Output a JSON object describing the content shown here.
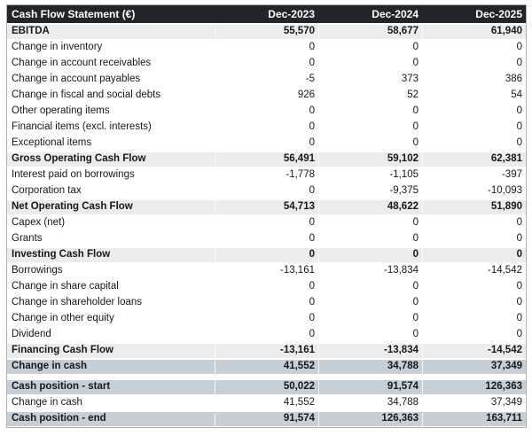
{
  "table": {
    "title": "Cash Flow Statement (€)",
    "columns": [
      "Dec-2023",
      "Dec-2024",
      "Dec-2025"
    ],
    "rows": [
      {
        "label": "EBITDA",
        "values": [
          "55,570",
          "58,677",
          "61,940"
        ],
        "style": "section"
      },
      {
        "label": "Change in inventory",
        "values": [
          "0",
          "0",
          "0"
        ],
        "style": "plain"
      },
      {
        "label": "Change in account receivables",
        "values": [
          "0",
          "0",
          "0"
        ],
        "style": "plain"
      },
      {
        "label": "Change in account payables",
        "values": [
          "-5",
          "373",
          "386"
        ],
        "style": "plain"
      },
      {
        "label": "Change in fiscal and social debts",
        "values": [
          "926",
          "52",
          "54"
        ],
        "style": "plain"
      },
      {
        "label": "Other operating items",
        "values": [
          "0",
          "0",
          "0"
        ],
        "style": "plain"
      },
      {
        "label": "Financial items (excl. interests)",
        "values": [
          "0",
          "0",
          "0"
        ],
        "style": "plain"
      },
      {
        "label": "Exceptional items",
        "values": [
          "0",
          "0",
          "0"
        ],
        "style": "plain"
      },
      {
        "label": "Gross Operating Cash Flow",
        "values": [
          "56,491",
          "59,102",
          "62,381"
        ],
        "style": "section"
      },
      {
        "label": "Interest paid on borrowings",
        "values": [
          "-1,778",
          "-1,105",
          "-397"
        ],
        "style": "plain"
      },
      {
        "label": "Corporation tax",
        "values": [
          "0",
          "-9,375",
          "-10,093"
        ],
        "style": "plain"
      },
      {
        "label": "Net Operating Cash Flow",
        "values": [
          "54,713",
          "48,622",
          "51,890"
        ],
        "style": "section"
      },
      {
        "label": "Capex (net)",
        "values": [
          "0",
          "0",
          "0"
        ],
        "style": "plain"
      },
      {
        "label": "Grants",
        "values": [
          "0",
          "0",
          "0"
        ],
        "style": "plain"
      },
      {
        "label": "Investing Cash Flow",
        "values": [
          "0",
          "0",
          "0"
        ],
        "style": "section"
      },
      {
        "label": "Borrowings",
        "values": [
          "-13,161",
          "-13,834",
          "-14,542"
        ],
        "style": "plain"
      },
      {
        "label": "Change in share capital",
        "values": [
          "0",
          "0",
          "0"
        ],
        "style": "plain"
      },
      {
        "label": "Change in shareholder loans",
        "values": [
          "0",
          "0",
          "0"
        ],
        "style": "plain"
      },
      {
        "label": "Change in other equity",
        "values": [
          "0",
          "0",
          "0"
        ],
        "style": "plain"
      },
      {
        "label": "Dividend",
        "values": [
          "0",
          "0",
          "0"
        ],
        "style": "plain"
      },
      {
        "label": "Financing Cash Flow",
        "values": [
          "-13,161",
          "-13,834",
          "-14,542"
        ],
        "style": "section"
      },
      {
        "label": "Change in cash",
        "values": [
          "41,552",
          "34,788",
          "37,349"
        ],
        "style": "highlight"
      },
      {
        "style": "spacer"
      },
      {
        "label": "Cash position - start",
        "values": [
          "50,022",
          "91,574",
          "126,363"
        ],
        "style": "highlight"
      },
      {
        "label": "Change in cash",
        "values": [
          "41,552",
          "34,788",
          "37,349"
        ],
        "style": "plain"
      },
      {
        "label": "Cash position - end",
        "values": [
          "91,574",
          "126,363",
          "163,711"
        ],
        "style": "highlight"
      }
    ],
    "colors": {
      "header_bg": "#22262b",
      "header_text": "#ffffff",
      "section_bg": "#ececec",
      "highlight_bg": "#c6cfd5",
      "border": "#a9b2b9",
      "text": "#15181a"
    }
  }
}
